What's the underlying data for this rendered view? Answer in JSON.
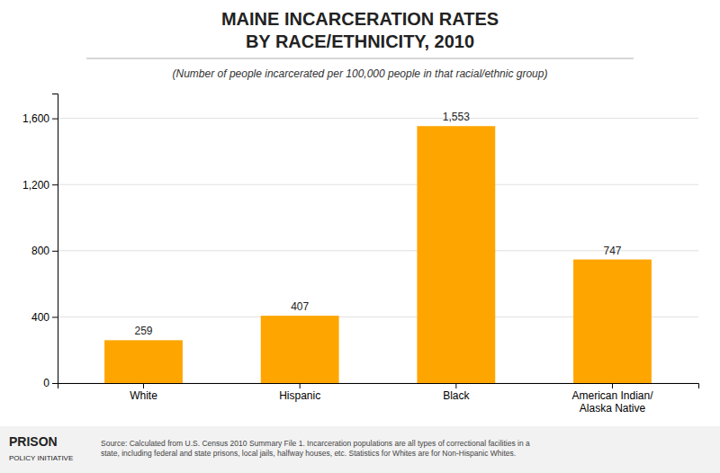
{
  "chart_data": {
    "type": "bar",
    "title": "MAINE INCARCERATION RATES\nBY RACE/ETHNICITY, 2010",
    "subtitle": "(Number of people incarcerated per 100,000 people in that racial/ethnic group)",
    "categories": [
      "White",
      "Hispanic",
      "Black",
      "American Indian/\nAlaska Native"
    ],
    "values": [
      259,
      407,
      1553,
      747
    ],
    "value_labels": [
      "259",
      "407",
      "1,553",
      "747"
    ],
    "data_labels": true,
    "color": "#FFA500",
    "ylim": [
      0,
      1750
    ],
    "yticks": [
      0,
      400,
      800,
      {
        "value": 1200,
        "label": "1,200"
      },
      {
        "value": 1600,
        "label": "1,600"
      }
    ],
    "grid": true,
    "annotations": [
      "PRISON",
      "POLICY INITIATIVE",
      "Source: Calculated from U.S. Census 2010 Summary File 1. Incarceration populations are all types of correctional facilities in a\nstate, including federal and state prisons, local jails, halfway houses, etc. Statistics for Whites are for Non-Hispanic Whites."
    ]
  }
}
